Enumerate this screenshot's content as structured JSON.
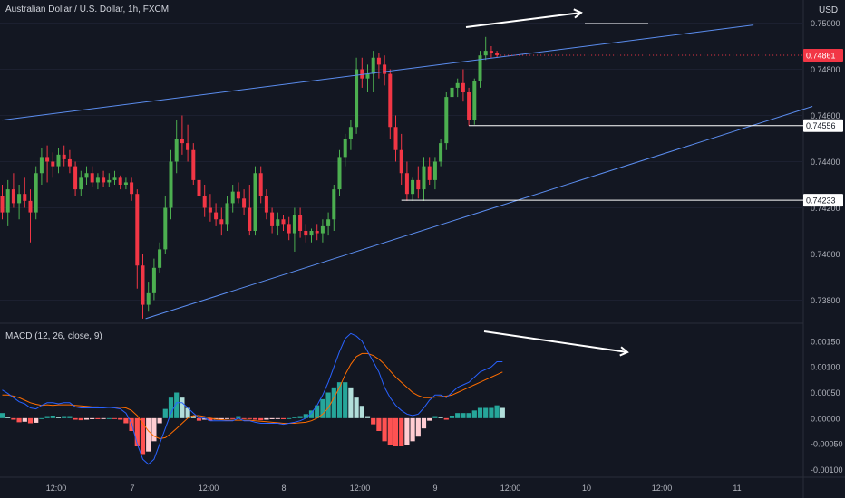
{
  "symbol_title": "Australian Dollar / U.S. Dollar, 1h, FXCM",
  "currency": "USD",
  "macd_title": "MACD (12, 26, close, 9)",
  "colors": {
    "background": "#131722",
    "up": "#26a69a",
    "up_candle": "#4caf50",
    "down": "#f23645",
    "trendline": "#5b8def",
    "macd_line": "#2962ff",
    "signal_line": "#ff6d00",
    "hist_up_strong": "#26a69a",
    "hist_up_weak": "#b2dfdb",
    "hist_down_strong": "#ff5252",
    "hist_down_weak": "#ffcdd2",
    "annotation": "#ffffff"
  },
  "chart_data": [
    {
      "type": "candlestick",
      "title": "Australian Dollar / U.S. Dollar, 1h, FXCM",
      "ylabel": "USD",
      "ylim": [
        0.737,
        0.751
      ],
      "y_ticks": [
        "0.75000",
        "0.74800",
        "0.74600",
        "0.74400",
        "0.74200",
        "0.74000",
        "0.73800"
      ],
      "x_ticks": [
        "12:00",
        "7",
        "12:00",
        "8",
        "12:00",
        "9",
        "12:00",
        "10",
        "12:00",
        "11"
      ],
      "price_labels": [
        {
          "label": "0.74861",
          "value": 0.74861,
          "kind": "current"
        },
        {
          "label": "0.74556",
          "value": 0.74556,
          "kind": "level"
        },
        {
          "label": "0.74233",
          "value": 0.74233,
          "kind": "level"
        }
      ],
      "ohlc": [
        [
          0.7425,
          0.743,
          0.7415,
          0.7418
        ],
        [
          0.7418,
          0.7432,
          0.7412,
          0.7428
        ],
        [
          0.7428,
          0.7435,
          0.742,
          0.7422
        ],
        [
          0.7422,
          0.743,
          0.7415,
          0.7426
        ],
        [
          0.7426,
          0.7433,
          0.742,
          0.7423
        ],
        [
          0.7423,
          0.7428,
          0.7405,
          0.7418
        ],
        [
          0.7418,
          0.7438,
          0.7415,
          0.7435
        ],
        [
          0.7435,
          0.7446,
          0.743,
          0.7442
        ],
        [
          0.7442,
          0.7447,
          0.7431,
          0.744
        ],
        [
          0.744,
          0.7444,
          0.7433,
          0.7438
        ],
        [
          0.7438,
          0.7446,
          0.7435,
          0.7443
        ],
        [
          0.7443,
          0.7447,
          0.7438,
          0.7441
        ],
        [
          0.7441,
          0.7445,
          0.7435,
          0.7438
        ],
        [
          0.7438,
          0.744,
          0.7425,
          0.7428
        ],
        [
          0.7428,
          0.7436,
          0.7425,
          0.7433
        ],
        [
          0.7433,
          0.7438,
          0.743,
          0.7435
        ],
        [
          0.7435,
          0.7438,
          0.7429,
          0.7431
        ],
        [
          0.7431,
          0.7435,
          0.7428,
          0.7433
        ],
        [
          0.7433,
          0.7436,
          0.7429,
          0.7431
        ],
        [
          0.7431,
          0.7435,
          0.7429,
          0.7432
        ],
        [
          0.7432,
          0.7436,
          0.743,
          0.7433
        ],
        [
          0.7433,
          0.7434,
          0.7428,
          0.743
        ],
        [
          0.743,
          0.7433,
          0.7428,
          0.7431
        ],
        [
          0.7431,
          0.7433,
          0.7423,
          0.7426
        ],
        [
          0.7426,
          0.7428,
          0.7385,
          0.7395
        ],
        [
          0.7395,
          0.74,
          0.7372,
          0.7378
        ],
        [
          0.7378,
          0.7388,
          0.7375,
          0.7383
        ],
        [
          0.7383,
          0.7398,
          0.738,
          0.7394
        ],
        [
          0.7394,
          0.7405,
          0.7392,
          0.7402
        ],
        [
          0.7402,
          0.7425,
          0.74,
          0.742
        ],
        [
          0.742,
          0.7445,
          0.7415,
          0.744
        ],
        [
          0.744,
          0.7458,
          0.7435,
          0.745
        ],
        [
          0.745,
          0.746,
          0.7443,
          0.7448
        ],
        [
          0.7448,
          0.7456,
          0.744,
          0.7445
        ],
        [
          0.7445,
          0.7448,
          0.743,
          0.7432
        ],
        [
          0.7432,
          0.7435,
          0.7422,
          0.7425
        ],
        [
          0.7425,
          0.743,
          0.7416,
          0.742
        ],
        [
          0.742,
          0.7426,
          0.7414,
          0.7418
        ],
        [
          0.7418,
          0.7422,
          0.7412,
          0.7415
        ],
        [
          0.7415,
          0.742,
          0.7408,
          0.7413
        ],
        [
          0.7413,
          0.7425,
          0.741,
          0.7422
        ],
        [
          0.7422,
          0.743,
          0.7418,
          0.7427
        ],
        [
          0.7427,
          0.7431,
          0.7422,
          0.7424
        ],
        [
          0.7424,
          0.7428,
          0.7417,
          0.742
        ],
        [
          0.742,
          0.743,
          0.7408,
          0.741
        ],
        [
          0.741,
          0.7438,
          0.7408,
          0.7435
        ],
        [
          0.7435,
          0.7438,
          0.7422,
          0.7425
        ],
        [
          0.7425,
          0.7428,
          0.7415,
          0.7418
        ],
        [
          0.7418,
          0.742,
          0.7409,
          0.7412
        ],
        [
          0.7412,
          0.7418,
          0.7408,
          0.7415
        ],
        [
          0.7415,
          0.7417,
          0.741,
          0.7413
        ],
        [
          0.7413,
          0.7416,
          0.7406,
          0.7409
        ],
        [
          0.7409,
          0.742,
          0.7401,
          0.7417
        ],
        [
          0.7417,
          0.742,
          0.7407,
          0.741
        ],
        [
          0.741,
          0.7413,
          0.7405,
          0.7408
        ],
        [
          0.7408,
          0.7411,
          0.7405,
          0.741
        ],
        [
          0.741,
          0.7413,
          0.7406,
          0.7409
        ],
        [
          0.7409,
          0.7415,
          0.7405,
          0.7412
        ],
        [
          0.7412,
          0.7418,
          0.7408,
          0.7415
        ],
        [
          0.7415,
          0.743,
          0.741,
          0.7428
        ],
        [
          0.7428,
          0.7445,
          0.7425,
          0.7442
        ],
        [
          0.7442,
          0.7452,
          0.7438,
          0.745
        ],
        [
          0.745,
          0.7458,
          0.7445,
          0.7455
        ],
        [
          0.7455,
          0.7485,
          0.7452,
          0.748
        ],
        [
          0.748,
          0.7485,
          0.7472,
          0.7476
        ],
        [
          0.7476,
          0.7482,
          0.747,
          0.7478
        ],
        [
          0.7478,
          0.7488,
          0.747,
          0.7485
        ],
        [
          0.7485,
          0.7487,
          0.7476,
          0.7482
        ],
        [
          0.7482,
          0.7486,
          0.7473,
          0.7478
        ],
        [
          0.7478,
          0.748,
          0.745,
          0.7455
        ],
        [
          0.7455,
          0.746,
          0.744,
          0.7445
        ],
        [
          0.7445,
          0.7452,
          0.743,
          0.7435
        ],
        [
          0.7435,
          0.744,
          0.7423,
          0.7426
        ],
        [
          0.7426,
          0.7433,
          0.7423,
          0.7432
        ],
        [
          0.7432,
          0.7438,
          0.7424,
          0.7428
        ],
        [
          0.7428,
          0.7442,
          0.7423,
          0.7438
        ],
        [
          0.7438,
          0.7442,
          0.743,
          0.7432
        ],
        [
          0.7432,
          0.7442,
          0.7428,
          0.744
        ],
        [
          0.744,
          0.745,
          0.7438,
          0.7448
        ],
        [
          0.7448,
          0.747,
          0.7445,
          0.7468
        ],
        [
          0.7468,
          0.7476,
          0.7462,
          0.7472
        ],
        [
          0.7472,
          0.7476,
          0.7468,
          0.7474
        ],
        [
          0.7474,
          0.748,
          0.7466,
          0.747
        ],
        [
          0.747,
          0.7472,
          0.74556,
          0.7458
        ],
        [
          0.7458,
          0.7476,
          0.7456,
          0.7475
        ],
        [
          0.7475,
          0.7488,
          0.7472,
          0.7486
        ],
        [
          0.7486,
          0.7494,
          0.7484,
          0.7488
        ],
        [
          0.7488,
          0.749,
          0.7485,
          0.7487
        ],
        [
          0.7487,
          0.7488,
          0.7485,
          0.74861
        ]
      ],
      "annotations": {
        "upper_trendline": [
          [
            0,
            0.7458
          ],
          [
            103,
            0.7498
          ]
        ],
        "lower_trendline": [
          [
            25.5,
            0.7372
          ],
          [
            103,
            0.746
          ]
        ],
        "level_lines": [
          0.74556,
          0.74233
        ],
        "arrow_note": "rising price arrow (upper right)"
      }
    },
    {
      "type": "line",
      "title": "MACD (12, 26, close, 9)",
      "ylim": [
        -0.00115,
        0.00185
      ],
      "y_ticks": [
        "0.00150",
        "0.00100",
        "0.00050",
        "0.00000",
        "-0.00050",
        "-0.00100"
      ],
      "series": [
        {
          "name": "MACD",
          "values": [
            0.00055,
            0.00048,
            0.0004,
            0.00032,
            0.00028,
            0.0002,
            0.00018,
            0.00025,
            0.0003,
            0.0003,
            0.00028,
            0.0003,
            0.0003,
            0.00022,
            0.0002,
            0.0002,
            0.0002,
            0.0002,
            0.0002,
            0.00021,
            0.0002,
            0.00018,
            0.0001,
            -0.0001,
            -0.0005,
            -0.0008,
            -0.0009,
            -0.0008,
            -0.0005,
            -0.0002,
            0.0001,
            0.0003,
            0.0003,
            0.0002,
            0.0001,
            0.0,
            0.0,
            -5e-05,
            -5e-05,
            -5e-05,
            -5e-05,
            -5e-05,
            0.0,
            -5e-05,
            -5e-05,
            -8e-05,
            -0.0001,
            -0.0001,
            -0.0001,
            -0.0001,
            -0.00012,
            -0.0001,
            -8e-05,
            -5e-05,
            0.0,
            0.0001,
            0.00025,
            0.00045,
            0.0007,
            0.001,
            0.0013,
            0.00155,
            0.00165,
            0.0016,
            0.0015,
            0.0013,
            0.0011,
            0.0009,
            0.0006,
            0.0004,
            0.00025,
            0.00015,
            8e-05,
            5e-05,
            8e-05,
            0.0002,
            0.00035,
            0.00045,
            0.00045,
            0.0004,
            0.0005,
            0.0006,
            0.00065,
            0.0007,
            0.0008,
            0.0009,
            0.00095,
            0.001,
            0.0011,
            0.0011
          ]
        },
        {
          "name": "Signal",
          "values": [
            0.00045,
            0.00045,
            0.00043,
            0.0004,
            0.00035,
            0.0003,
            0.00027,
            0.00025,
            0.00026,
            0.00025,
            0.00026,
            0.00026,
            0.00026,
            0.00025,
            0.00024,
            0.00023,
            0.00022,
            0.00022,
            0.00021,
            0.00021,
            0.00021,
            0.00021,
            0.0002,
            0.00015,
            5e-05,
            -0.0001,
            -0.00025,
            -0.00035,
            -0.0004,
            -0.00038,
            -0.0003,
            -0.0002,
            -0.0001,
            0.0,
            5e-05,
            5e-05,
            3e-05,
            0.0,
            -2e-05,
            -3e-05,
            -4e-05,
            -4e-05,
            -4e-05,
            -4e-05,
            -4e-05,
            -5e-05,
            -6e-05,
            -7e-05,
            -8e-05,
            -9e-05,
            -0.0001,
            -0.0001,
            -0.0001,
            -9e-05,
            -8e-05,
            -5e-05,
            0.0,
            8e-05,
            0.0002,
            0.0004,
            0.0006,
            0.00085,
            0.00105,
            0.0012,
            0.00126,
            0.00126,
            0.00122,
            0.00115,
            0.00105,
            0.00092,
            0.0008,
            0.0007,
            0.0006,
            0.0005,
            0.00044,
            0.0004,
            0.0004,
            0.00041,
            0.00042,
            0.00043,
            0.00045,
            0.0005,
            0.00055,
            0.0006,
            0.00065,
            0.0007,
            0.00075,
            0.0008,
            0.00085,
            0.0009
          ]
        }
      ],
      "annotations": {
        "arrow_note": "falling MACD arrow (divergence)"
      }
    }
  ]
}
